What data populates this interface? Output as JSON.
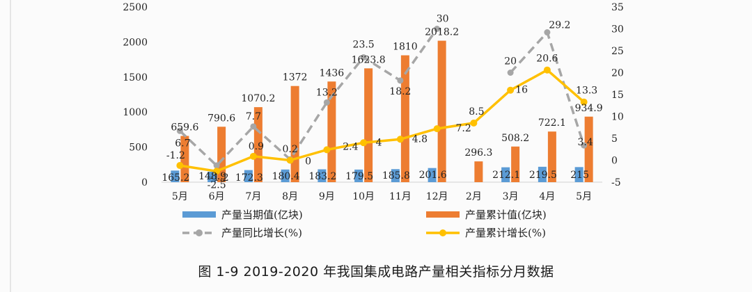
{
  "caption": "图 1-9  2019-2020 年我国集成电路产量相关指标分月数据",
  "chart_data": {
    "type": "bar",
    "categories": [
      "5月",
      "6月",
      "7月",
      "8月",
      "9月",
      "10月",
      "11月",
      "12月",
      "2月",
      "3月",
      "4月",
      "5月"
    ],
    "y_left": {
      "lim": [
        0,
        2500
      ],
      "ticks": [
        "0",
        "500",
        "1000",
        "1500",
        "2000",
        "2500"
      ]
    },
    "y_right": {
      "lim": [
        -5,
        35
      ],
      "ticks": [
        "-5",
        "0",
        "5",
        "10",
        "15",
        "20",
        "25",
        "30",
        "35"
      ]
    },
    "series": [
      {
        "name": "产量当期值(亿块)",
        "kind": "bar",
        "axis": "left",
        "color": "#5b9bd5",
        "values": [
          165.2,
          148.9,
          172.3,
          180.4,
          183.2,
          179.5,
          185.8,
          201.6,
          null,
          212.1,
          219.5,
          215
        ],
        "labels": [
          "165.2",
          "148.9",
          "172.3",
          "180.4",
          "183.2",
          "179.5",
          "185.8",
          "201.6",
          null,
          "212.1",
          "219.5",
          "215"
        ]
      },
      {
        "name": "产量累计值(亿块)",
        "kind": "bar",
        "axis": "left",
        "color": "#ed7d31",
        "values": [
          659.6,
          790.6,
          1070.2,
          1372,
          1436,
          1623.8,
          1810,
          2018.2,
          296.3,
          508.2,
          722.1,
          934.9
        ],
        "labels": [
          "659.6",
          "790.6",
          "1070.2",
          "1372",
          "1436",
          "1623.8",
          "1810",
          "2018.2",
          "296.3",
          "508.2",
          "722.1",
          "934.9"
        ]
      },
      {
        "name": "产量同比增长(%)",
        "kind": "line-dashed",
        "axis": "right",
        "color": "#a6a6a6",
        "values": [
          6.7,
          -1.2,
          7.7,
          0.2,
          13.2,
          23.5,
          18.2,
          30,
          null,
          20,
          29.2,
          3.4
        ],
        "labels": [
          "6.7",
          "-1.2",
          "7.7",
          "0.2",
          "13.2",
          "23.5",
          "18.2",
          "30",
          null,
          "20",
          "29.2",
          "3.4"
        ]
      },
      {
        "name": "产量累计增长(%)",
        "kind": "line",
        "axis": "right",
        "color": "#ffc000",
        "values": [
          -1.2,
          -2.5,
          0.9,
          0,
          2.4,
          4,
          4.8,
          7.2,
          8.5,
          16,
          20.6,
          13.3
        ],
        "labels": [
          "-1.2",
          "-2.5",
          "0.9",
          "0",
          "2.4",
          "4",
          "4.8",
          "7.2",
          "8.5",
          "16",
          "20.6",
          "13.3"
        ]
      }
    ],
    "legend": "bottom, two columns",
    "grid": false
  }
}
